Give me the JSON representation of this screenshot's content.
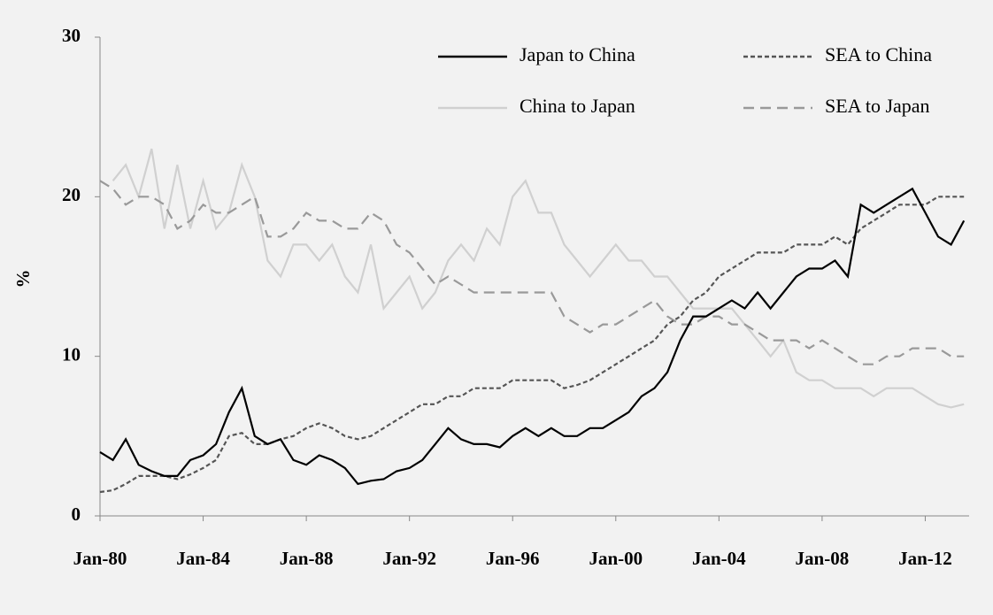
{
  "chart_data": {
    "type": "line",
    "ylabel": "%",
    "x": [
      1980,
      1980.5,
      1981,
      1981.5,
      1982,
      1982.5,
      1983,
      1983.5,
      1984,
      1984.5,
      1985,
      1985.5,
      1986,
      1986.5,
      1987,
      1987.5,
      1988,
      1988.5,
      1989,
      1989.5,
      1990,
      1990.5,
      1991,
      1991.5,
      1992,
      1992.5,
      1993,
      1993.5,
      1994,
      1994.5,
      1995,
      1995.5,
      1996,
      1996.5,
      1997,
      1997.5,
      1998,
      1998.5,
      1999,
      1999.5,
      2000,
      2000.5,
      2001,
      2001.5,
      2002,
      2002.5,
      2003,
      2003.5,
      2004,
      2004.5,
      2005,
      2005.5,
      2006,
      2006.5,
      2007,
      2007.5,
      2008,
      2008.5,
      2009,
      2009.5,
      2010,
      2010.5,
      2011,
      2011.5,
      2012,
      2012.5,
      2013,
      2013.5
    ],
    "xlim": [
      1980,
      2013.7
    ],
    "xticks": [
      {
        "value": 1980,
        "label": "Jan-80"
      },
      {
        "value": 1984,
        "label": "Jan-84"
      },
      {
        "value": 1988,
        "label": "Jan-88"
      },
      {
        "value": 1992,
        "label": "Jan-92"
      },
      {
        "value": 1996,
        "label": "Jan-96"
      },
      {
        "value": 2000,
        "label": "Jan-00"
      },
      {
        "value": 2004,
        "label": "Jan-04"
      },
      {
        "value": 2008,
        "label": "Jan-08"
      },
      {
        "value": 2012,
        "label": "Jan-12"
      }
    ],
    "ylim": [
      0,
      30
    ],
    "yticks": [
      0,
      10,
      20,
      30
    ],
    "grid": false,
    "legend": "upper right",
    "series": [
      {
        "name": "Japan to China",
        "color": "#000000",
        "linestyle": "solid",
        "values": [
          4,
          3.5,
          4.8,
          3.2,
          2.8,
          2.5,
          2.5,
          3.5,
          3.8,
          4.5,
          6.5,
          8,
          5,
          4.5,
          4.8,
          3.5,
          3.2,
          3.8,
          3.5,
          3,
          2,
          2.2,
          2.3,
          2.8,
          3,
          3.5,
          4.5,
          5.5,
          4.8,
          4.5,
          4.5,
          4.3,
          5,
          5.5,
          5,
          5.5,
          5,
          5,
          5.5,
          5.5,
          6,
          6.5,
          7.5,
          8,
          9,
          11,
          12.5,
          12.5,
          13,
          13.5,
          13,
          14,
          13,
          14,
          15,
          15.5,
          15.5,
          16,
          15,
          19.5,
          19,
          19.5,
          20,
          20.5,
          19,
          17.5,
          17,
          18.5
        ]
      },
      {
        "name": "SEA to China",
        "color": "#555555",
        "linestyle": "dashed",
        "values": [
          1.5,
          1.6,
          2,
          2.5,
          2.5,
          2.5,
          2.3,
          2.6,
          3,
          3.5,
          5,
          5.2,
          4.5,
          4.5,
          4.8,
          5,
          5.5,
          5.8,
          5.5,
          5,
          4.8,
          5,
          5.5,
          6,
          6.5,
          7,
          7,
          7.5,
          7.5,
          8,
          8,
          8,
          8.5,
          8.5,
          8.5,
          8.5,
          8,
          8.2,
          8.5,
          9,
          9.5,
          10,
          10.5,
          11,
          12,
          12.5,
          13.5,
          14,
          15,
          15.5,
          16,
          16.5,
          16.5,
          16.5,
          17,
          17,
          17,
          17.5,
          17,
          18,
          18.5,
          19,
          19.5,
          19.5,
          19.5,
          20,
          20,
          20
        ]
      },
      {
        "name": "China to Japan",
        "color": "#d0d0d0",
        "linestyle": "solid",
        "values": [
          null,
          21,
          22,
          20,
          23,
          18,
          22,
          18,
          21,
          18,
          19,
          22,
          20,
          16,
          15,
          17,
          17,
          16,
          17,
          15,
          14,
          17,
          13,
          14,
          15,
          13,
          14,
          16,
          17,
          16,
          18,
          17,
          20,
          21,
          19,
          19,
          17,
          16,
          15,
          16,
          17,
          16,
          16,
          15,
          15,
          14,
          13,
          13,
          13,
          13,
          12,
          11,
          10,
          11,
          9,
          8.5,
          8.5,
          8,
          8,
          8,
          7.5,
          8,
          8,
          8,
          7.5,
          7,
          6.8,
          7
        ]
      },
      {
        "name": "SEA to Japan",
        "color": "#999999",
        "linestyle": "long-dashed",
        "values": [
          21,
          20.5,
          19.5,
          20,
          20,
          19.5,
          18,
          18.5,
          19.5,
          19,
          19,
          19.5,
          20,
          17.5,
          17.5,
          18,
          19,
          18.5,
          18.5,
          18,
          18,
          19,
          18.5,
          17,
          16.5,
          15.5,
          14.5,
          15,
          14.5,
          14,
          14,
          14,
          14,
          14,
          14,
          14,
          12.5,
          12,
          11.5,
          12,
          12,
          12.5,
          13,
          13.5,
          12.5,
          12,
          12,
          12.5,
          12.5,
          12,
          12,
          11.5,
          11,
          11,
          11,
          10.5,
          11,
          10.5,
          10,
          9.5,
          9.5,
          10,
          10,
          10.5,
          10.5,
          10.5,
          10,
          10
        ]
      }
    ]
  }
}
